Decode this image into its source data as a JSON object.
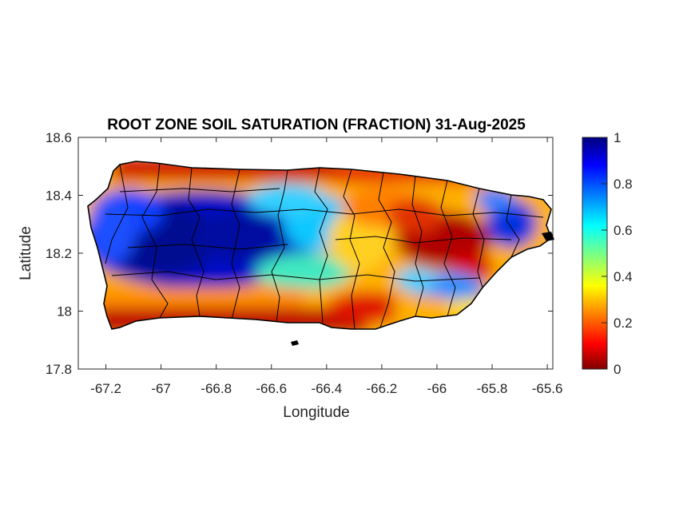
{
  "figure": {
    "title": "ROOT ZONE SOIL SATURATION (FRACTION) 31-Aug-2025",
    "xlabel": "Longitude",
    "ylabel": "Latitude",
    "xlim": [
      -67.3,
      -65.58
    ],
    "ylim": [
      17.8,
      18.6
    ],
    "xticks": [
      -67.2,
      -67,
      -66.8,
      -66.6,
      -66.4,
      -66.2,
      -66,
      -65.8,
      -65.6
    ],
    "xtick_labels": [
      "-67.2",
      "-67",
      "-66.8",
      "-66.6",
      "-66.4",
      "-66.2",
      "-66",
      "-65.8",
      "-65.6"
    ],
    "yticks": [
      17.8,
      18,
      18.2,
      18.4,
      18.6
    ],
    "ytick_labels": [
      "17.8",
      "18",
      "18.2",
      "18.4",
      "18.6"
    ]
  },
  "colorbar": {
    "colormap": "jet",
    "range": [
      0,
      1
    ],
    "ticks": [
      0,
      0.2,
      0.4,
      0.6,
      0.8,
      1
    ],
    "tick_labels": [
      "0",
      "0.2",
      "0.4",
      "0.6",
      "0.8",
      "1"
    ],
    "colors": [
      "#800000",
      "#ff0000",
      "#ffff00",
      "#00ffff",
      "#0000ff",
      "#000080"
    ]
  },
  "map": {
    "region": "Puerto Rico",
    "variable": "root zone soil saturation fraction",
    "pattern": "wet (blue) in western interior and northeast; dry (red) along south coast, north coast and east-central interior"
  }
}
